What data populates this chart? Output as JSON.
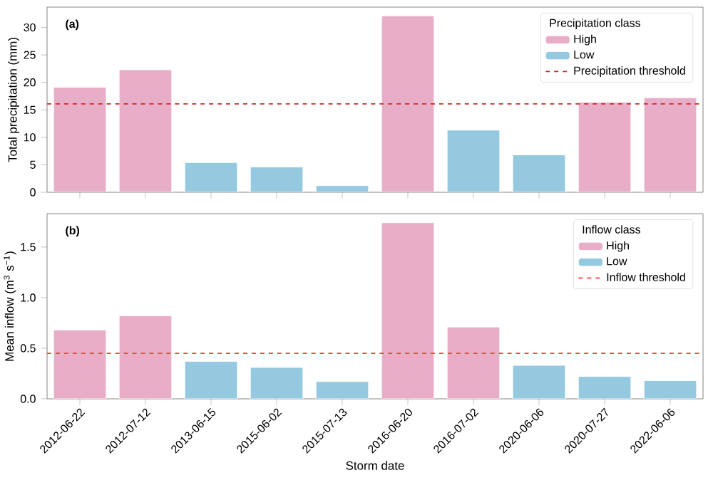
{
  "chart_data": [
    {
      "type": "bar",
      "ylabel": "Total precipitation (mm)",
      "annotations": [
        "(a)"
      ],
      "legend_title": "Precipitation class",
      "categories": [
        "2012-06-22",
        "2012-07-12",
        "2013-06-15",
        "2015-06-02",
        "2015-07-13",
        "2016-06-20",
        "2016-07-02",
        "2020-06-06",
        "2020-07-27",
        "2022-06-06"
      ],
      "series": [
        {
          "name": "High",
          "color": "#e8aec7",
          "values": [
            19.1,
            22.3,
            null,
            null,
            null,
            32.1,
            null,
            null,
            16.4,
            17.2
          ]
        },
        {
          "name": "Low",
          "color": "#95c9df",
          "values": [
            null,
            null,
            5.4,
            4.6,
            1.2,
            null,
            11.3,
            6.8,
            null,
            null
          ]
        }
      ],
      "ref_lines": [
        {
          "axis": "y",
          "value": 16.1,
          "label": "Precipitation threshold",
          "color": "#d62728",
          "line_style": "dashed"
        }
      ],
      "ylim": [
        0,
        33.7
      ],
      "yticks": [
        0,
        5,
        10,
        15,
        20,
        25,
        30
      ],
      "tick_labels": "y",
      "legend": "top right"
    },
    {
      "type": "bar",
      "ylabel": "Mean inflow (m$^{3}$ s$^{−1}$)",
      "xlabel": "Storm date",
      "annotations": [
        "(b)"
      ],
      "legend_title": "Inflow class",
      "categories": [
        "2012-06-22",
        "2012-07-12",
        "2013-06-15",
        "2015-06-02",
        "2015-07-13",
        "2016-06-20",
        "2016-07-02",
        "2020-06-06",
        "2020-07-27",
        "2022-06-06"
      ],
      "series": [
        {
          "name": "High",
          "color": "#e8aec7",
          "values": [
            0.68,
            0.82,
            null,
            null,
            null,
            1.74,
            0.71,
            null,
            null,
            null
          ]
        },
        {
          "name": "Low",
          "color": "#95c9df",
          "values": [
            null,
            null,
            0.37,
            0.31,
            0.17,
            null,
            null,
            0.33,
            0.22,
            0.18
          ]
        }
      ],
      "ref_lines": [
        {
          "axis": "y",
          "value": 0.45,
          "label": "Inflow threshold",
          "color": "#ff4040",
          "line_style": "dashed"
        }
      ],
      "ylim": [
        0,
        1.83
      ],
      "yticks": [
        {
          "value": 0,
          "label": "0.0"
        },
        0.5,
        {
          "value": 1,
          "label": "1.0"
        },
        1.5
      ],
      "legend": "top right"
    }
  ]
}
